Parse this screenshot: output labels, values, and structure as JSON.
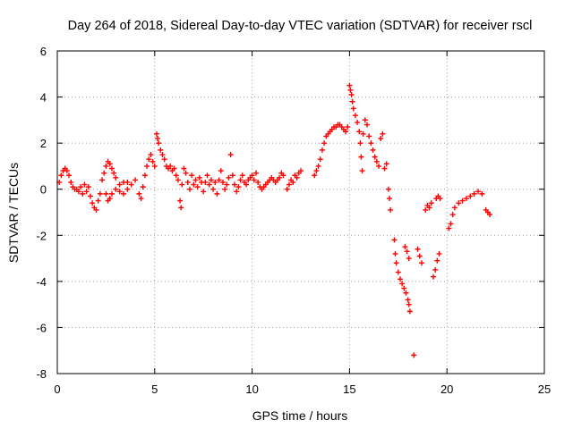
{
  "chart_data": {
    "type": "scatter",
    "title": "Day 264 of 2018, Sidereal Day-to-day VTEC variation (SDTVAR) for receiver rscl",
    "xlabel": "GPS time / hours",
    "ylabel": "SDTVAR / TECUs",
    "xlim": [
      0,
      25
    ],
    "ylim": [
      -8,
      6
    ],
    "xticks": [
      0,
      5,
      10,
      15,
      20,
      25
    ],
    "yticks": [
      -8,
      -6,
      -4,
      -2,
      0,
      2,
      4,
      6
    ],
    "grid": true,
    "marker": "plus",
    "marker_color": "#ff0000",
    "series": [
      {
        "name": "SDTVAR",
        "points": [
          [
            0.1,
            0.3
          ],
          [
            0.2,
            0.6
          ],
          [
            0.3,
            0.8
          ],
          [
            0.4,
            0.9
          ],
          [
            0.5,
            0.8
          ],
          [
            0.6,
            0.6
          ],
          [
            0.7,
            0.3
          ],
          [
            0.8,
            0.1
          ],
          [
            0.9,
            0.0
          ],
          [
            1.0,
            0.0
          ],
          [
            1.1,
            -0.1
          ],
          [
            1.2,
            0.1
          ],
          [
            1.3,
            -0.2
          ],
          [
            1.4,
            0.2
          ],
          [
            1.5,
            -0.1
          ],
          [
            1.6,
            0.1
          ],
          [
            1.7,
            -0.3
          ],
          [
            1.8,
            -0.6
          ],
          [
            1.9,
            -0.8
          ],
          [
            2.0,
            -0.9
          ],
          [
            2.1,
            -0.5
          ],
          [
            2.2,
            -0.2
          ],
          [
            2.3,
            0.4
          ],
          [
            2.4,
            0.7
          ],
          [
            2.5,
            1.0
          ],
          [
            2.6,
            1.2
          ],
          [
            2.7,
            1.1
          ],
          [
            2.8,
            0.9
          ],
          [
            2.9,
            0.7
          ],
          [
            3.0,
            0.5
          ],
          [
            2.5,
            -0.2
          ],
          [
            2.6,
            -0.5
          ],
          [
            2.7,
            -0.4
          ],
          [
            2.8,
            -0.2
          ],
          [
            3.0,
            0.0
          ],
          [
            3.2,
            0.2
          ],
          [
            3.4,
            0.3
          ],
          [
            3.6,
            0.3
          ],
          [
            3.8,
            0.2
          ],
          [
            4.0,
            0.4
          ],
          [
            3.2,
            -0.1
          ],
          [
            3.4,
            -0.2
          ],
          [
            3.6,
            0.0
          ],
          [
            4.2,
            -0.2
          ],
          [
            4.3,
            -0.4
          ],
          [
            4.4,
            0.1
          ],
          [
            4.5,
            0.6
          ],
          [
            4.6,
            1.0
          ],
          [
            4.7,
            1.3
          ],
          [
            4.8,
            1.5
          ],
          [
            4.9,
            1.2
          ],
          [
            5.0,
            1.0
          ],
          [
            5.1,
            2.4
          ],
          [
            5.15,
            2.2
          ],
          [
            5.2,
            2.0
          ],
          [
            5.3,
            1.7
          ],
          [
            5.4,
            1.5
          ],
          [
            5.5,
            1.3
          ],
          [
            5.6,
            1.0
          ],
          [
            5.7,
            0.9
          ],
          [
            5.8,
            1.0
          ],
          [
            5.9,
            0.8
          ],
          [
            6.0,
            0.9
          ],
          [
            6.1,
            0.6
          ],
          [
            6.2,
            0.4
          ],
          [
            6.3,
            -0.5
          ],
          [
            6.35,
            -0.8
          ],
          [
            6.4,
            0.2
          ],
          [
            6.5,
            0.9
          ],
          [
            6.6,
            0.7
          ],
          [
            6.7,
            0.3
          ],
          [
            6.8,
            0.0
          ],
          [
            6.9,
            0.6
          ],
          [
            7.0,
            0.2
          ],
          [
            7.1,
            0.4
          ],
          [
            7.2,
            0.1
          ],
          [
            7.3,
            0.5
          ],
          [
            7.4,
            0.3
          ],
          [
            7.5,
            -0.1
          ],
          [
            7.6,
            0.3
          ],
          [
            7.7,
            0.6
          ],
          [
            7.8,
            0.2
          ],
          [
            7.9,
            0.4
          ],
          [
            8.0,
            0.0
          ],
          [
            8.1,
            0.3
          ],
          [
            8.2,
            -0.2
          ],
          [
            8.3,
            0.4
          ],
          [
            8.4,
            0.8
          ],
          [
            8.5,
            0.3
          ],
          [
            8.6,
            0.0
          ],
          [
            8.7,
            0.2
          ],
          [
            8.8,
            0.5
          ],
          [
            8.9,
            1.5
          ],
          [
            9.0,
            0.6
          ],
          [
            9.1,
            0.2
          ],
          [
            9.2,
            -0.1
          ],
          [
            9.3,
            0.1
          ],
          [
            9.4,
            0.4
          ],
          [
            9.5,
            0.6
          ],
          [
            9.6,
            0.3
          ],
          [
            9.7,
            0.2
          ],
          [
            9.8,
            0.4
          ],
          [
            9.9,
            0.5
          ],
          [
            10.0,
            0.6
          ],
          [
            10.1,
            0.4
          ],
          [
            10.2,
            0.7
          ],
          [
            10.3,
            0.3
          ],
          [
            10.4,
            0.1
          ],
          [
            10.5,
            0.0
          ],
          [
            10.6,
            0.1
          ],
          [
            10.7,
            0.2
          ],
          [
            10.8,
            0.3
          ],
          [
            10.9,
            0.4
          ],
          [
            11.0,
            0.5
          ],
          [
            11.1,
            0.4
          ],
          [
            11.2,
            0.3
          ],
          [
            11.3,
            0.4
          ],
          [
            11.4,
            0.5
          ],
          [
            11.5,
            0.7
          ],
          [
            11.6,
            0.6
          ],
          [
            11.8,
            0.0
          ],
          [
            11.9,
            0.2
          ],
          [
            12.0,
            0.4
          ],
          [
            12.1,
            0.3
          ],
          [
            12.2,
            0.6
          ],
          [
            12.3,
            0.5
          ],
          [
            12.4,
            0.7
          ],
          [
            12.5,
            0.8
          ],
          [
            13.2,
            0.6
          ],
          [
            13.3,
            0.8
          ],
          [
            13.4,
            1.0
          ],
          [
            13.5,
            1.3
          ],
          [
            13.6,
            1.7
          ],
          [
            13.7,
            2.0
          ],
          [
            13.8,
            2.3
          ],
          [
            13.9,
            2.4
          ],
          [
            14.0,
            2.5
          ],
          [
            14.1,
            2.6
          ],
          [
            14.2,
            2.7
          ],
          [
            14.3,
            2.7
          ],
          [
            14.4,
            2.8
          ],
          [
            14.5,
            2.8
          ],
          [
            14.6,
            2.7
          ],
          [
            14.7,
            2.6
          ],
          [
            14.8,
            2.5
          ],
          [
            14.9,
            2.7
          ],
          [
            15.0,
            4.5
          ],
          [
            15.05,
            4.3
          ],
          [
            15.1,
            4.1
          ],
          [
            15.15,
            3.8
          ],
          [
            15.2,
            3.5
          ],
          [
            15.3,
            3.2
          ],
          [
            15.4,
            2.9
          ],
          [
            15.5,
            2.5
          ],
          [
            15.55,
            2.0
          ],
          [
            15.6,
            1.4
          ],
          [
            15.65,
            0.8
          ],
          [
            15.7,
            2.4
          ],
          [
            15.8,
            3.0
          ],
          [
            15.9,
            2.8
          ],
          [
            16.0,
            2.3
          ],
          [
            16.1,
            2.0
          ],
          [
            16.2,
            1.7
          ],
          [
            16.3,
            1.4
          ],
          [
            16.4,
            1.2
          ],
          [
            16.5,
            1.0
          ],
          [
            16.6,
            2.2
          ],
          [
            16.7,
            2.4
          ],
          [
            16.8,
            0.9
          ],
          [
            16.9,
            1.1
          ],
          [
            17.0,
            0.0
          ],
          [
            17.05,
            -0.4
          ],
          [
            17.1,
            -0.9
          ],
          [
            17.3,
            -2.2
          ],
          [
            17.35,
            -2.8
          ],
          [
            17.4,
            -3.2
          ],
          [
            17.5,
            -3.6
          ],
          [
            17.6,
            -3.9
          ],
          [
            17.7,
            -4.1
          ],
          [
            17.8,
            -4.3
          ],
          [
            17.9,
            -4.5
          ],
          [
            18.0,
            -4.8
          ],
          [
            18.05,
            -5.0
          ],
          [
            18.1,
            -5.3
          ],
          [
            17.85,
            -2.5
          ],
          [
            17.95,
            -2.7
          ],
          [
            18.05,
            -3.0
          ],
          [
            18.3,
            -7.2
          ],
          [
            18.5,
            -2.6
          ],
          [
            18.6,
            -2.9
          ],
          [
            18.7,
            -3.2
          ],
          [
            18.9,
            -0.9
          ],
          [
            19.0,
            -0.7
          ],
          [
            19.1,
            -0.8
          ],
          [
            19.2,
            -0.6
          ],
          [
            19.3,
            -3.8
          ],
          [
            19.4,
            -3.5
          ],
          [
            19.5,
            -3.1
          ],
          [
            19.6,
            -2.8
          ],
          [
            19.45,
            -0.4
          ],
          [
            19.55,
            -0.3
          ],
          [
            19.65,
            -0.4
          ],
          [
            20.1,
            -1.7
          ],
          [
            20.2,
            -1.5
          ],
          [
            20.3,
            -1.1
          ],
          [
            20.4,
            -0.8
          ],
          [
            20.6,
            -0.6
          ],
          [
            20.8,
            -0.5
          ],
          [
            21.0,
            -0.4
          ],
          [
            21.2,
            -0.3
          ],
          [
            21.4,
            -0.2
          ],
          [
            21.6,
            -0.1
          ],
          [
            21.8,
            -0.2
          ],
          [
            22.0,
            -0.9
          ],
          [
            22.1,
            -1.0
          ],
          [
            22.2,
            -1.1
          ]
        ]
      }
    ]
  }
}
